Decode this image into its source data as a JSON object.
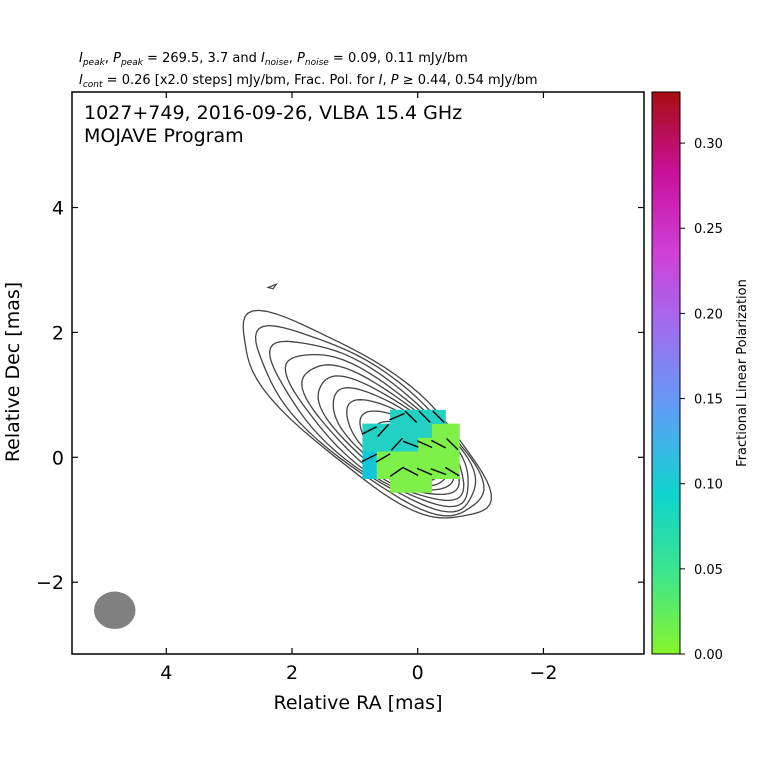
{
  "header": {
    "line1": {
      "i_peak_sym": "I",
      "i_peak_sub": "peak",
      "p_peak_sym": "P",
      "p_peak_sub": "peak",
      "mid_text": " = 269.5, 3.7 and ",
      "i_noise_sym": "I",
      "i_noise_sub": "noise",
      "p_noise_sym": "P",
      "p_noise_sub": "noise",
      "end_text": " = 0.09, 0.11 mJy/bm"
    },
    "line2": {
      "i_cont_sym": "I",
      "i_cont_sub": "cont",
      "text_a": " = 0.26 [x2.0 steps] mJy/bm, Frac. Pol. for ",
      "i_sym": "I",
      "p_sym": "P",
      "text_b": " ≥ 0.44, 0.54 mJy/bm"
    }
  },
  "annotation": {
    "line1": "1027+749, 2016-09-26, VLBA 15.4 GHz",
    "line2": "MOJAVE Program"
  },
  "chart_data": {
    "type": "contour",
    "xlabel": "Relative RA [mas]",
    "ylabel": "Relative Dec [mas]",
    "xlim": [
      5.5,
      -3.6
    ],
    "ylim": [
      -3.15,
      5.85
    ],
    "x_ticks": [
      4,
      2,
      0,
      -2
    ],
    "x_tick_labels": [
      "4",
      "2",
      "0",
      "−2"
    ],
    "y_ticks": [
      4,
      2,
      0,
      -2
    ],
    "y_tick_labels": [
      "4",
      "2",
      "0",
      "−2"
    ],
    "peak_position": [
      0.1,
      0.05
    ],
    "contour_levels_mJy": [
      0.26,
      0.52,
      1.04,
      2.08,
      4.16,
      8.32,
      16.64,
      33.28,
      66.56,
      133.12,
      266.24
    ],
    "beam": {
      "center": [
        4.82,
        -2.45
      ],
      "major_axis_mas": 0.66,
      "minor_axis_mas": 0.6,
      "color": "#808080"
    },
    "polarization_patch_colors": {
      "teal": "#22d1c4",
      "cyan": "#10c6d6",
      "green": "#7ff04a",
      "lime": "#8ef53e"
    },
    "colorbar": {
      "label": "Fractional Linear Polarization",
      "range": [
        0.0,
        0.33
      ],
      "ticks": [
        0.0,
        0.05,
        0.1,
        0.15,
        0.2,
        0.25,
        0.3
      ],
      "tick_labels": [
        "0.00",
        "0.05",
        "0.10",
        "0.15",
        "0.20",
        "0.25",
        "0.30"
      ],
      "colormap": [
        "#86f52d",
        "#3ee58c",
        "#0fd3cf",
        "#5aa0f5",
        "#9c70f0",
        "#d040d8",
        "#c8109a",
        "#a80d10"
      ]
    }
  }
}
